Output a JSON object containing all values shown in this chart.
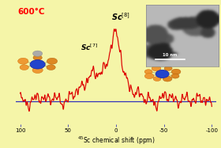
{
  "title": "600°C",
  "title_color": "#ff0000",
  "xlabel": "$^{45}$Sc chemical shift (ppm)",
  "background_color": "#f5f5a8",
  "line_color": "#dd0000",
  "axis_color": "#3333bb",
  "label_sc7": "Sc$^{[7]}$",
  "label_sc8": "Sc$^{[8]}$",
  "inset_label": "10 nm",
  "xticks": [
    100,
    50,
    0,
    -50,
    -100
  ],
  "xlim_left": 105,
  "xlim_right": -105
}
